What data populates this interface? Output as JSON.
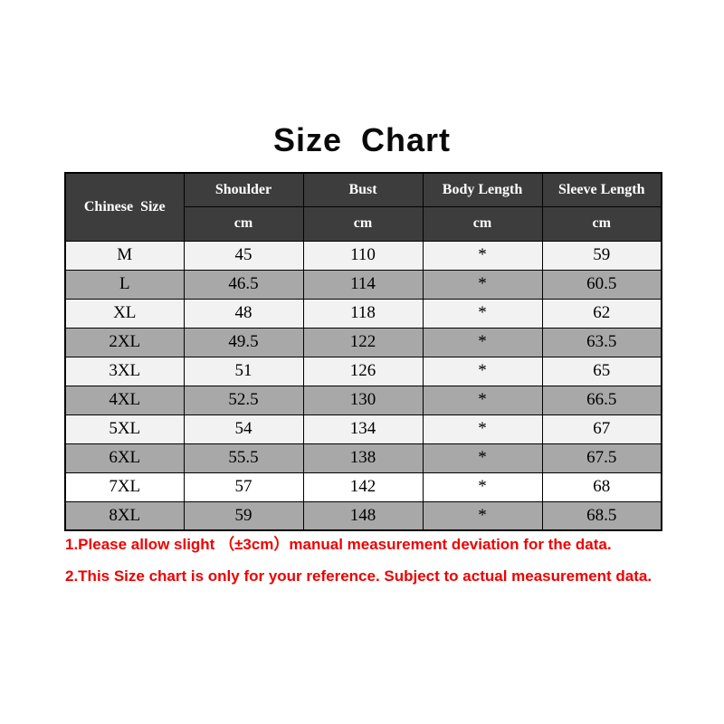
{
  "title": "Size Chart",
  "chart_data": {
    "type": "table",
    "title": "Size Chart",
    "corner_header": "Chinese  Size",
    "columns": [
      "Shoulder",
      "Bust",
      "Body Length",
      "Sleeve Length"
    ],
    "unit_row": [
      "cm",
      "cm",
      "cm",
      "cm"
    ],
    "rows": [
      {
        "size": "M",
        "values": [
          "45",
          "110",
          "*",
          "59"
        ],
        "shade": "light"
      },
      {
        "size": "L",
        "values": [
          "46.5",
          "114",
          "*",
          "60.5"
        ],
        "shade": "dark"
      },
      {
        "size": "XL",
        "values": [
          "48",
          "118",
          "*",
          "62"
        ],
        "shade": "light"
      },
      {
        "size": "2XL",
        "values": [
          "49.5",
          "122",
          "*",
          "63.5"
        ],
        "shade": "dark"
      },
      {
        "size": "3XL",
        "values": [
          "51",
          "126",
          "*",
          "65"
        ],
        "shade": "light"
      },
      {
        "size": "4XL",
        "values": [
          "52.5",
          "130",
          "*",
          "66.5"
        ],
        "shade": "dark"
      },
      {
        "size": "5XL",
        "values": [
          "54",
          "134",
          "*",
          "67"
        ],
        "shade": "light"
      },
      {
        "size": "6XL",
        "values": [
          "55.5",
          "138",
          "*",
          "67.5"
        ],
        "shade": "dark"
      },
      {
        "size": "7XL",
        "values": [
          "57",
          "142",
          "*",
          "68"
        ],
        "shade": "white"
      },
      {
        "size": "8XL",
        "values": [
          "59",
          "148",
          "*",
          "68.5"
        ],
        "shade": "dark"
      }
    ]
  },
  "notes": [
    "1.Please allow slight （±3cm）manual measurement deviation for the data.",
    "2.This Size chart is only for your reference. Subject to actual measurement data."
  ],
  "colors": {
    "title_text": "#0a0a0a",
    "header_bg": "#3d3d3d",
    "header_text": "#ffffff",
    "row_light": "#f2f2f2",
    "row_dark": "#a8a8a8",
    "row_white": "#ffffff",
    "border": "#000000",
    "note_red": "#ee0000"
  }
}
